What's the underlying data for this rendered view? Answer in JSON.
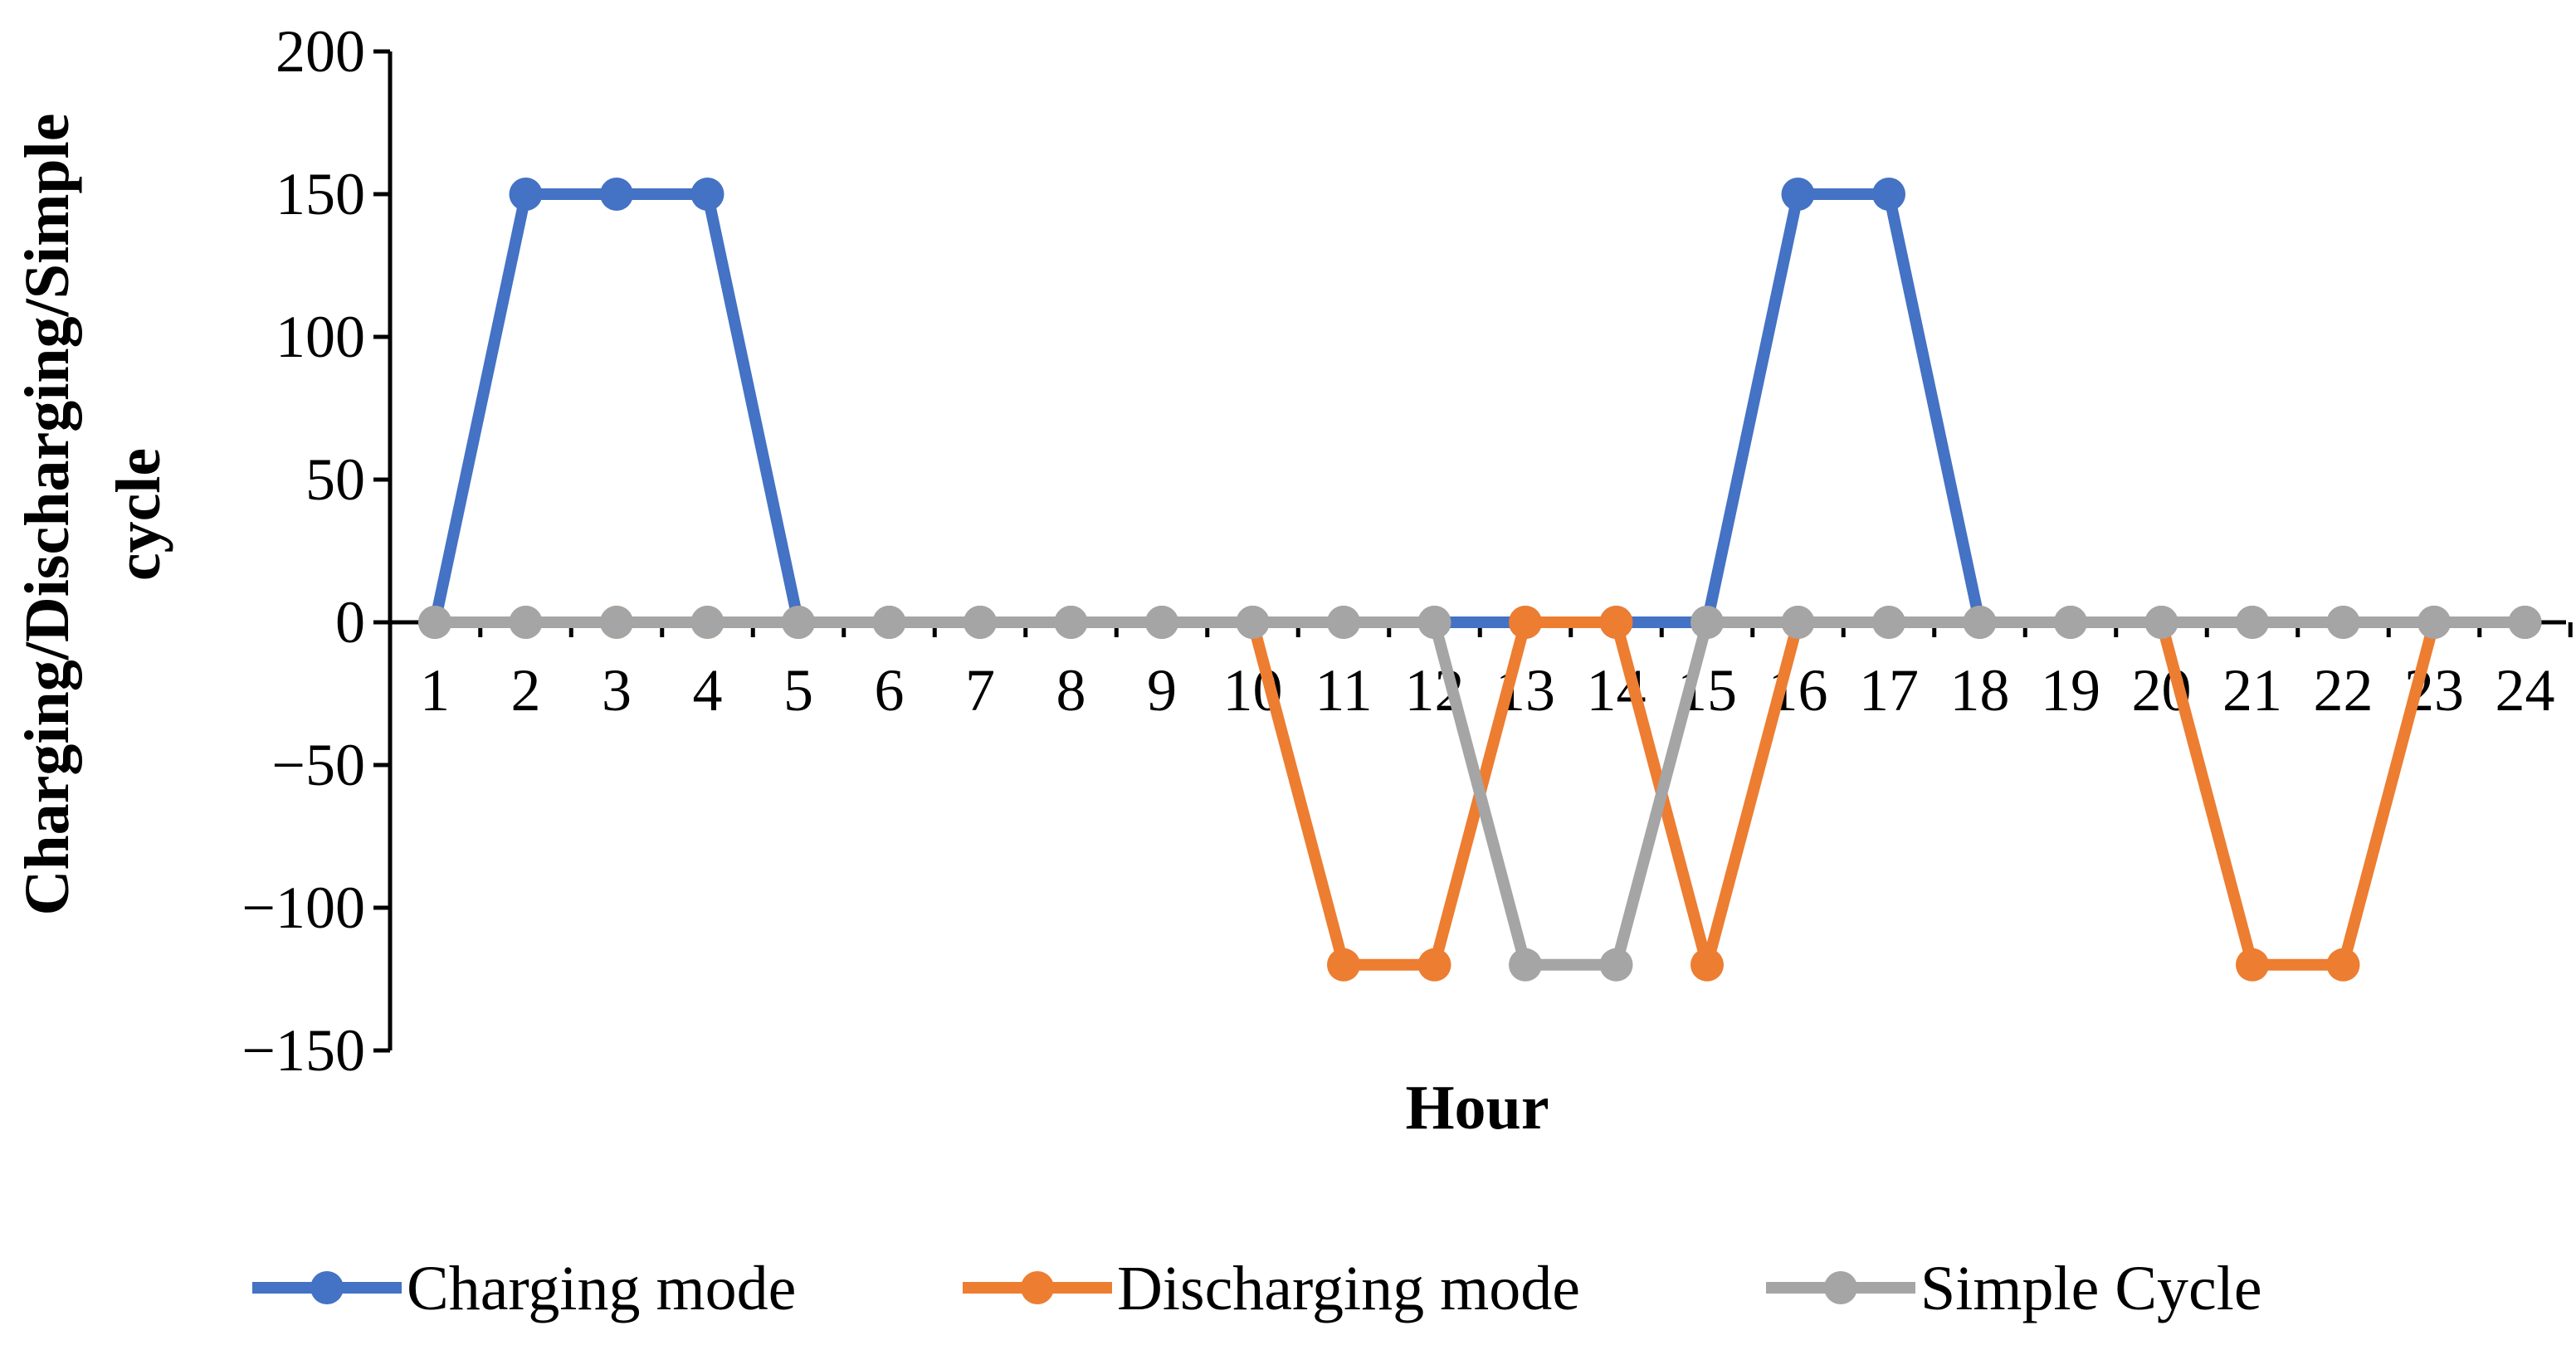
{
  "chart_data": {
    "type": "line",
    "title": "",
    "xlabel": "Hour",
    "ylabel_lines": [
      "Charging/Discharging/Simple",
      "cycle"
    ],
    "x": [
      1,
      2,
      3,
      4,
      5,
      6,
      7,
      8,
      9,
      10,
      11,
      12,
      13,
      14,
      15,
      16,
      17,
      18,
      19,
      20,
      21,
      22,
      23,
      24
    ],
    "ylim": [
      -150,
      200
    ],
    "yticks": [
      200,
      150,
      100,
      50,
      0,
      -50,
      -100,
      -150
    ],
    "ytick_labels": [
      "200",
      "150",
      "100",
      "50",
      "0",
      "−50",
      "−100",
      "−150"
    ],
    "grid": false,
    "legend": "bottom",
    "series": [
      {
        "name": "Charging mode",
        "color": "#4472C4",
        "values": [
          0,
          150,
          150,
          150,
          0,
          0,
          0,
          0,
          0,
          0,
          0,
          0,
          0,
          0,
          0,
          150,
          150,
          0,
          0,
          0,
          0,
          0,
          0,
          0
        ]
      },
      {
        "name": "Discharging mode",
        "color": "#ED7D31",
        "values": [
          0,
          0,
          0,
          0,
          0,
          0,
          0,
          0,
          0,
          0,
          -120,
          -120,
          0,
          0,
          -120,
          0,
          0,
          0,
          0,
          0,
          -120,
          -120,
          0,
          0
        ]
      },
      {
        "name": "Simple Cycle",
        "color": "#A5A5A5",
        "values": [
          0,
          0,
          0,
          0,
          0,
          0,
          0,
          0,
          0,
          0,
          0,
          0,
          -120,
          -120,
          0,
          0,
          0,
          0,
          0,
          0,
          0,
          0,
          0,
          0
        ]
      }
    ]
  }
}
